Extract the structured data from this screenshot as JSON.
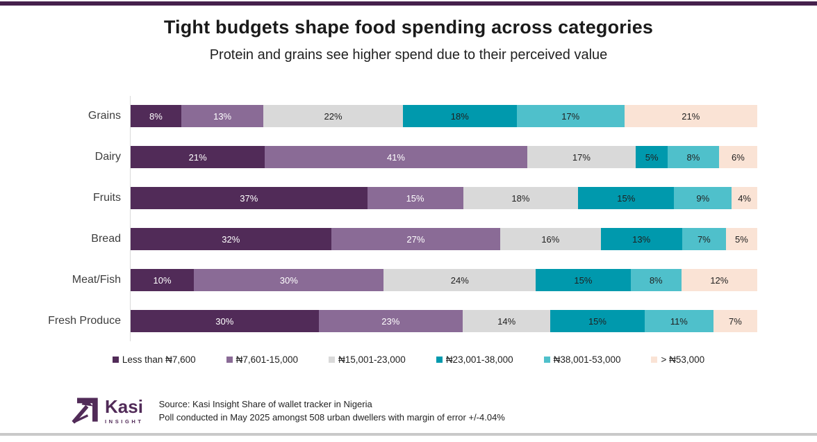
{
  "page": {
    "title": "Tight budgets shape food spending across categories",
    "subtitle": "Protein and grains see higher spend due to their perceived value",
    "accent_color": "#45204c",
    "background_color": "#ffffff",
    "axis_color": "#d9d9d9",
    "bottom_rule_color": "#c9c9c9"
  },
  "chart_data": {
    "type": "bar",
    "orientation": "horizontal",
    "stacked": true,
    "normalized_to_100_percent": true,
    "value_format": "percent",
    "grid": false,
    "legend_position": "bottom",
    "title": "Tight budgets shape food spending across categories",
    "subtitle": "Protein and grains see higher spend due to their perceived value",
    "categories": [
      "Grains",
      "Dairy",
      "Fruits",
      "Bread",
      "Meat/Fish",
      "Fresh Produce"
    ],
    "series": [
      {
        "name": "Less than ₦7,600",
        "color": "#512b58",
        "label_color": "#ffffff",
        "values": [
          8,
          21,
          37,
          32,
          10,
          30
        ]
      },
      {
        "name": "₦7,601-15,000",
        "color": "#8a6b96",
        "label_color": "#ffffff",
        "values": [
          13,
          41,
          15,
          27,
          30,
          23
        ]
      },
      {
        "name": "₦15,001-23,000",
        "color": "#d9d9d9",
        "label_color": "#1f1f1f",
        "values": [
          22,
          17,
          18,
          16,
          24,
          14
        ]
      },
      {
        "name": "₦23,001-38,000",
        "color": "#0099ad",
        "label_color": "#1f1f1f",
        "values": [
          18,
          5,
          15,
          13,
          15,
          15
        ]
      },
      {
        "name": "₦38,001-53,000",
        "color": "#4fc0cb",
        "label_color": "#1f1f1f",
        "values": [
          17,
          8,
          9,
          7,
          8,
          11
        ]
      },
      {
        "name": "> ₦53,000",
        "color": "#fae3d5",
        "label_color": "#1f1f1f",
        "values": [
          21,
          6,
          4,
          5,
          12,
          7
        ]
      }
    ]
  },
  "footer": {
    "logo": {
      "brand": "Kasi",
      "sub": "INSIGHT",
      "icon": "kasi-arrow-icon",
      "color": "#512b58"
    },
    "source_line1": "Source: Kasi Insight Share of wallet tracker in Nigeria",
    "source_line2": "Poll conducted in May 2025 amongst 508 urban dwellers with margin of error +/-4.04%"
  }
}
